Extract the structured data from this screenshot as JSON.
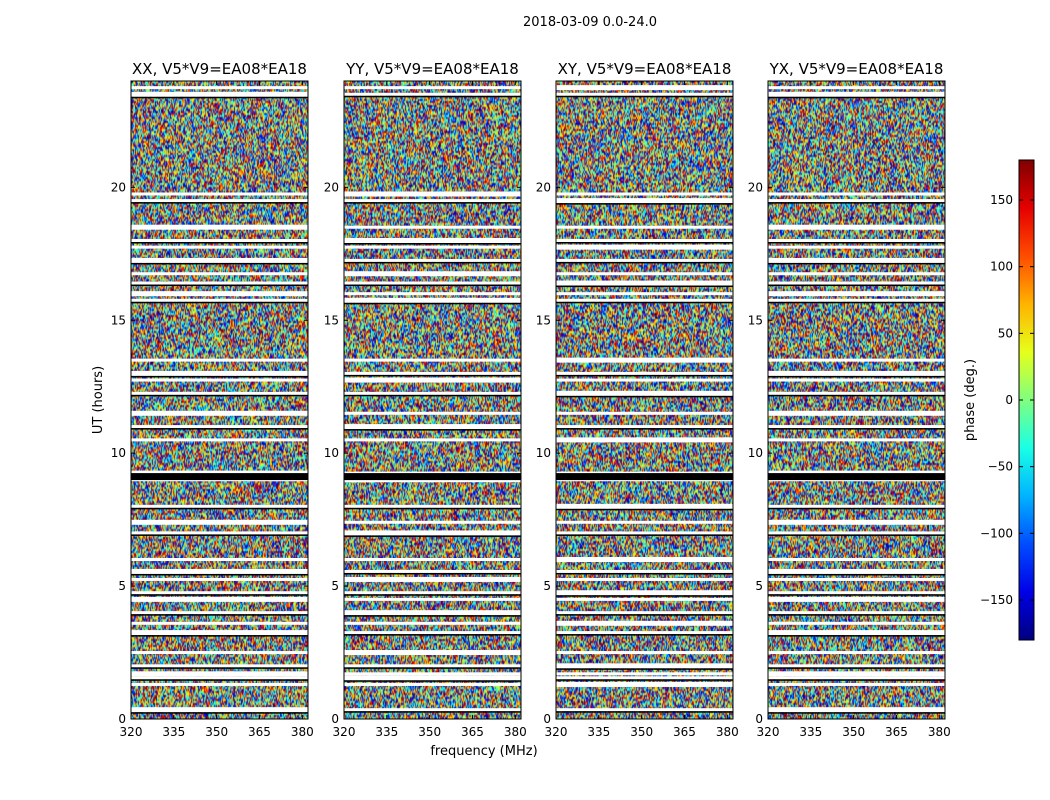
{
  "figure_title": "2018-03-09 0.0-24.0",
  "chart_data": {
    "type": "heatmap",
    "panels": [
      {
        "title": "XX, V5*V9=EA08*EA18"
      },
      {
        "title": "YY, V5*V9=EA08*EA18"
      },
      {
        "title": "XY, V5*V9=EA08*EA18"
      },
      {
        "title": "YX, V5*V9=EA08*EA18"
      }
    ],
    "xlabel": "frequency (MHz)",
    "ylabel": "UT (hours)",
    "xlim": [
      320,
      382
    ],
    "ylim": [
      0,
      24
    ],
    "xticks": [
      320,
      335,
      350,
      365,
      380
    ],
    "yticks": [
      0,
      5,
      10,
      15,
      20
    ],
    "colorbar": {
      "label": "phase (deg.)",
      "range": [
        -180,
        180
      ],
      "ticks": [
        -150,
        -100,
        -50,
        0,
        50,
        100,
        150
      ],
      "tick_labels": [
        "−150",
        "−100",
        "−50",
        "0",
        "50",
        "100",
        "150"
      ],
      "colormap": "jet"
    },
    "values_description": "random phase noise per frequency/time cell with blank rows of flagged data",
    "flag_rows_hours": [
      0.35,
      1.3,
      1.55,
      1.7,
      2.0,
      2.5,
      3.25,
      3.6,
      4.0,
      4.5,
      4.75,
      5.25,
      5.55,
      6.0,
      7.0,
      7.4,
      8.0,
      9.0,
      9.25,
      10.5,
      11.0,
      11.5,
      12.25,
      12.75,
      13.0,
      13.5,
      15.75,
      16.0,
      16.4,
      16.75,
      17.25,
      17.75,
      18.0,
      18.5,
      19.5,
      19.75,
      23.5,
      23.75
    ]
  }
}
